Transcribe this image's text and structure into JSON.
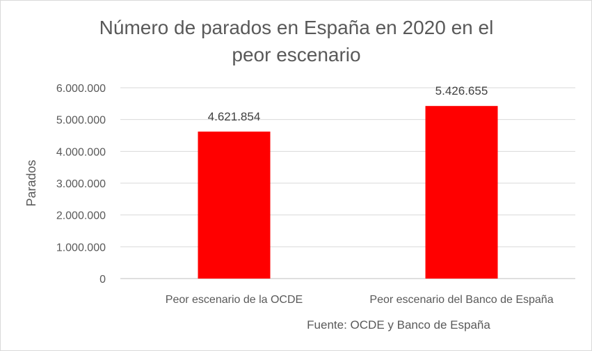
{
  "chart_data": {
    "type": "bar",
    "title_lines": [
      "Número de parados en España en 2020 en el",
      "peor escenario"
    ],
    "ylabel": "Parados",
    "xlabel": "",
    "categories": [
      "Peor escenario de la OCDE",
      "Peor escenario del Banco de España"
    ],
    "values": [
      4621854,
      5426655
    ],
    "data_labels": [
      "4.621.854",
      "5.426.655"
    ],
    "ylim": [
      0,
      6000000
    ],
    "yticks": [
      0,
      1000000,
      2000000,
      3000000,
      4000000,
      5000000,
      6000000
    ],
    "ytick_labels": [
      "0",
      "1.000.000",
      "2.000.000",
      "3.000.000",
      "4.000.000",
      "5.000.000",
      "6.000.000"
    ],
    "grid": true,
    "legend": "none",
    "bar_color": "#ff0000",
    "source": "Fuente: OCDE y Banco de España"
  }
}
